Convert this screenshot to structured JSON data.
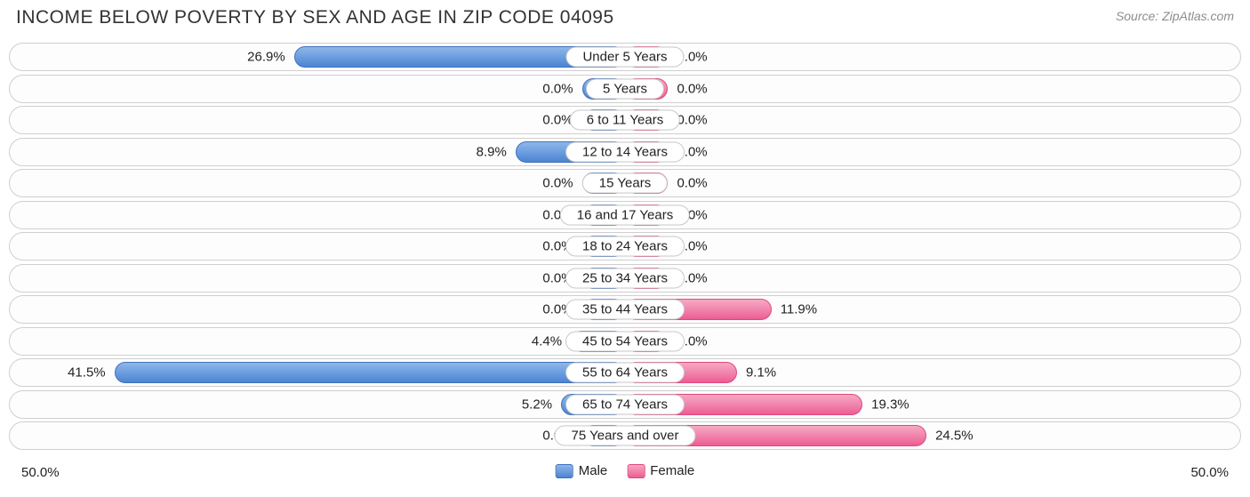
{
  "title": "INCOME BELOW POVERTY BY SEX AND AGE IN ZIP CODE 04095",
  "source": "Source: ZipAtlas.com",
  "chart": {
    "type": "diverging-bar",
    "axis_max": 50.0,
    "axis_min_label": "50.0%",
    "axis_max_label": "50.0%",
    "male_color_top": "#8fb6e8",
    "male_color_bottom": "#4d84d0",
    "male_border": "#3f72be",
    "female_color_top": "#f7a9c4",
    "female_color_bottom": "#ec5d92",
    "female_border": "#e2477f",
    "background": "#ffffff",
    "row_border": "#cfcfcf",
    "min_bar_pct": 7.0,
    "label_fontsize": 15,
    "title_fontsize": 21,
    "rows": [
      {
        "category": "Under 5 Years",
        "male": 26.9,
        "female": 0.0
      },
      {
        "category": "5 Years",
        "male": 0.0,
        "female": 0.0
      },
      {
        "category": "6 to 11 Years",
        "male": 0.0,
        "female": 0.0
      },
      {
        "category": "12 to 14 Years",
        "male": 8.9,
        "female": 0.0
      },
      {
        "category": "15 Years",
        "male": 0.0,
        "female": 0.0
      },
      {
        "category": "16 and 17 Years",
        "male": 0.0,
        "female": 0.0
      },
      {
        "category": "18 to 24 Years",
        "male": 0.0,
        "female": 0.0
      },
      {
        "category": "25 to 34 Years",
        "male": 0.0,
        "female": 0.0
      },
      {
        "category": "35 to 44 Years",
        "male": 0.0,
        "female": 11.9
      },
      {
        "category": "45 to 54 Years",
        "male": 4.4,
        "female": 0.0
      },
      {
        "category": "55 to 64 Years",
        "male": 41.5,
        "female": 9.1
      },
      {
        "category": "65 to 74 Years",
        "male": 5.2,
        "female": 19.3
      },
      {
        "category": "75 Years and over",
        "male": 0.0,
        "female": 24.5
      }
    ],
    "legend": {
      "male": "Male",
      "female": "Female"
    }
  }
}
